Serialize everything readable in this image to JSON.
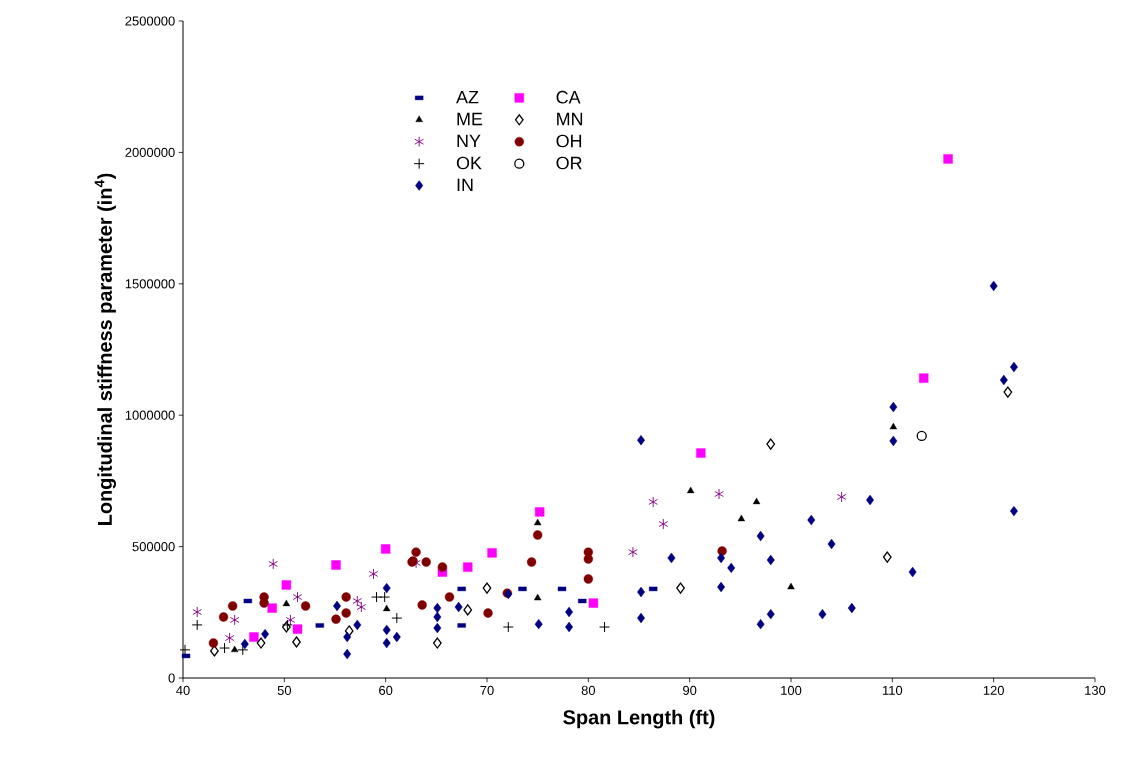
{
  "chart_data": {
    "type": "scatter",
    "xlabel": "Span Length (ft)",
    "ylabel": "Longitudinal stiffness parameter (in$^{4}$)",
    "xlim": [
      40,
      130
    ],
    "xticks": [
      40,
      50,
      60,
      70,
      80,
      90,
      100,
      110,
      120,
      130
    ],
    "ylim": [
      0,
      2500000
    ],
    "yticks": [
      0,
      500000,
      1000000,
      1500000,
      2000000,
      2500000
    ],
    "grid": false,
    "legend": "top left",
    "series": [
      {
        "name": "AZ",
        "color": "#000080",
        "x": [
          40.3,
          46.4,
          53.5,
          67.5,
          67.5,
          73.5,
          77.4,
          79.4,
          86.4
        ],
        "values": [
          84000,
          293000,
          200000,
          339000,
          200000,
          339000,
          339000,
          293000,
          339000
        ]
      },
      {
        "name": "CA",
        "color": "#ff00ff",
        "marker": "square",
        "x": [
          47.0,
          48.8,
          50.2,
          51.3,
          55.1,
          60.0,
          65.6,
          68.1,
          70.5,
          75.2,
          80.5,
          91.1,
          113.1,
          115.5
        ],
        "values": [
          156000,
          266000,
          354000,
          186000,
          430000,
          491000,
          403000,
          422000,
          476000,
          632000,
          285000,
          856000,
          1141000,
          1975000
        ]
      },
      {
        "name": "ME",
        "color": "#000000",
        "marker": "triangle",
        "x": [
          45.1,
          50.2,
          60.1,
          75.0,
          75.0,
          90.1,
          95.1,
          96.6,
          100.0,
          110.1
        ],
        "values": [
          107000,
          282000,
          263000,
          590000,
          304000,
          712000,
          605000,
          670000,
          346000,
          955000
        ]
      },
      {
        "name": "MN",
        "color": "#000000",
        "marker": "diamond-open",
        "x": [
          43.1,
          47.7,
          50.2,
          51.2,
          56.4,
          65.1,
          68.1,
          70.0,
          89.1,
          98.0,
          109.5,
          121.4
        ],
        "values": [
          103000,
          133000,
          194000,
          137000,
          179000,
          133000,
          259000,
          342000,
          342000,
          890000,
          460000,
          1088000
        ]
      },
      {
        "name": "NY",
        "color": "#800080",
        "marker": "cross",
        "x": [
          41.4,
          44.6,
          45.1,
          48.9,
          50.6,
          51.3,
          57.2,
          57.6,
          58.8,
          63.0,
          84.4,
          86.4,
          87.4,
          92.9,
          105.0
        ],
        "values": [
          251000,
          152000,
          221000,
          434000,
          221000,
          308000,
          293000,
          270000,
          396000,
          438000,
          479000,
          670000,
          586000,
          700000,
          689000
        ]
      },
      {
        "name": "OH",
        "color": "#800000",
        "marker": "circle",
        "x": [
          43.0,
          44.0,
          44.9,
          48.0,
          48.0,
          52.1,
          55.1,
          56.1,
          56.1,
          62.6,
          62.7,
          63.0,
          63.6,
          64.0,
          65.6,
          66.3,
          70.1,
          72.0,
          74.4,
          75.0,
          80.0,
          80.0,
          80.0,
          93.2
        ],
        "values": [
          133000,
          232000,
          274000,
          308000,
          285000,
          274000,
          224000,
          308000,
          247000,
          441000,
          445000,
          479000,
          278000,
          441000,
          422000,
          308000,
          247000,
          323000,
          441000,
          544000,
          479000,
          453000,
          377000,
          483000
        ]
      },
      {
        "name": "OK",
        "color": "#000000",
        "marker": "plus",
        "x": [
          40.2,
          41.4,
          44.1,
          45.9,
          50.3,
          59.1,
          59.9,
          61.1,
          72.1,
          81.6
        ],
        "values": [
          107000,
          202000,
          114000,
          107000,
          202000,
          308000,
          308000,
          228000,
          194000,
          194000
        ]
      },
      {
        "name": "OR",
        "color": "#000000",
        "marker": "circle-open",
        "x": [
          112.9
        ],
        "values": [
          921000
        ]
      },
      {
        "name": "IN",
        "color": "#000080",
        "marker": "diamond",
        "x": [
          46.1,
          48.1,
          55.2,
          56.2,
          56.2,
          57.2,
          60.1,
          60.1,
          60.1,
          61.1,
          65.1,
          65.1,
          65.1,
          67.2,
          72.1,
          75.1,
          78.1,
          78.1,
          85.2,
          85.2,
          85.2,
          88.2,
          93.1,
          93.1,
          94.1,
          97.0,
          97.0,
          98.0,
          98.0,
          102.0,
          103.1,
          104.0,
          106.0,
          107.8,
          110.1,
          110.1,
          112.0,
          120.0,
          121.0,
          122.0,
          122.0
        ],
        "values": [
          129000,
          167000,
          274000,
          156000,
          91000,
          202000,
          342000,
          183000,
          133000,
          156000,
          266000,
          232000,
          190000,
          270000,
          320000,
          205000,
          251000,
          194000,
          327000,
          228000,
          905000,
          457000,
          457000,
          346000,
          419000,
          540000,
          205000,
          449000,
          243000,
          601000,
          243000,
          510000,
          266000,
          677000,
          1031000,
          902000,
          403000,
          1492000,
          1134000,
          1183000,
          635000
        ]
      }
    ]
  }
}
